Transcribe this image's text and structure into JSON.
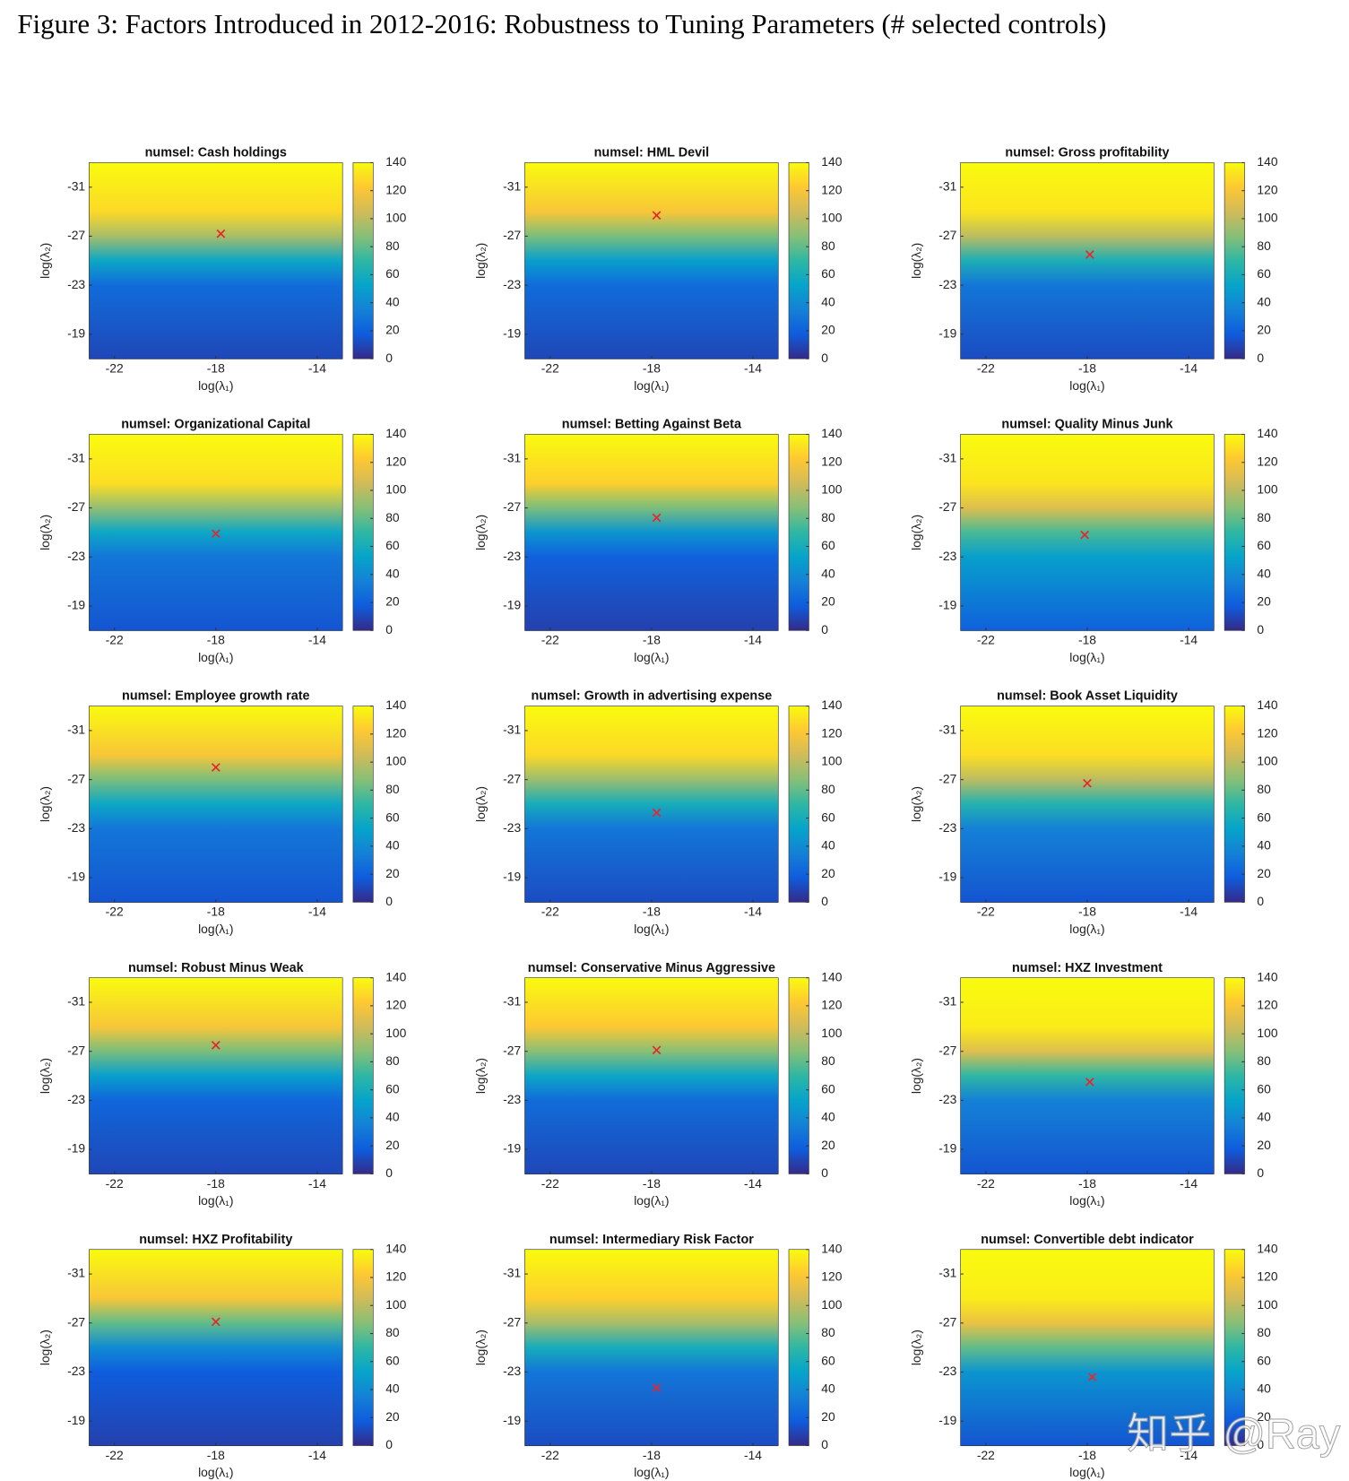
{
  "title": "Figure 3: Factors Introduced in 2012-2016: Robustness to Tuning Parameters (# selected controls)",
  "watermark": "知乎 @Ray",
  "chart_data": [
    {
      "type": "heatmap",
      "title": "numsel: Cash holdings",
      "xlabel": "log(λ₁)",
      "ylabel": "log(λ₂)",
      "xlim": [
        -23,
        -13
      ],
      "xticks": [
        -22,
        -18,
        -14
      ],
      "ylim": [
        -17,
        -33
      ],
      "yticks": [
        -31,
        -27,
        -23,
        -19
      ],
      "clim": [
        0,
        140
      ],
      "cticks": [
        0,
        20,
        40,
        60,
        80,
        100,
        120,
        140
      ],
      "profile": {
        "y": [
          -33,
          -29,
          -27,
          -25,
          -23,
          -17
        ],
        "values": [
          140,
          128,
          95,
          55,
          25,
          10
        ]
      },
      "marker": {
        "x": -17.8,
        "y": -27.2,
        "color": "#e8262a"
      }
    },
    {
      "type": "heatmap",
      "title": "numsel: HML Devil",
      "xlabel": "log(λ₁)",
      "ylabel": "log(λ₂)",
      "xlim": [
        -23,
        -13
      ],
      "xticks": [
        -22,
        -18,
        -14
      ],
      "ylim": [
        -17,
        -33
      ],
      "yticks": [
        -31,
        -27,
        -23,
        -19
      ],
      "clim": [
        0,
        140
      ],
      "cticks": [
        0,
        20,
        40,
        60,
        80,
        100,
        120,
        140
      ],
      "profile": {
        "y": [
          -33,
          -29,
          -27,
          -25,
          -23,
          -17
        ],
        "values": [
          140,
          120,
          85,
          50,
          25,
          10
        ]
      },
      "marker": {
        "x": -17.8,
        "y": -28.7,
        "color": "#e8262a"
      }
    },
    {
      "type": "heatmap",
      "title": "numsel: Gross profitability",
      "xlabel": "log(λ₁)",
      "ylabel": "log(λ₂)",
      "xlim": [
        -23,
        -13
      ],
      "xticks": [
        -22,
        -18,
        -14
      ],
      "ylim": [
        -17,
        -33
      ],
      "yticks": [
        -31,
        -27,
        -23,
        -19
      ],
      "clim": [
        0,
        140
      ],
      "cticks": [
        0,
        20,
        40,
        60,
        80,
        100,
        120,
        140
      ],
      "profile": {
        "y": [
          -33,
          -29,
          -27,
          -25,
          -23,
          -17
        ],
        "values": [
          140,
          132,
          100,
          62,
          30,
          12
        ]
      },
      "marker": {
        "x": -17.9,
        "y": -25.5,
        "color": "#e8262a"
      }
    },
    {
      "type": "heatmap",
      "title": "numsel: Organizational Capital",
      "xlabel": "log(λ₁)",
      "ylabel": "log(λ₂)",
      "xlim": [
        -23,
        -13
      ],
      "xticks": [
        -22,
        -18,
        -14
      ],
      "ylim": [
        -17,
        -33
      ],
      "yticks": [
        -31,
        -27,
        -23,
        -19
      ],
      "clim": [
        0,
        140
      ],
      "cticks": [
        0,
        20,
        40,
        60,
        80,
        100,
        120,
        140
      ],
      "profile": {
        "y": [
          -33,
          -29,
          -27,
          -25,
          -23,
          -17
        ],
        "values": [
          140,
          130,
          90,
          55,
          30,
          15
        ]
      },
      "marker": {
        "x": -18,
        "y": -24.9,
        "color": "#e8262a"
      }
    },
    {
      "type": "heatmap",
      "title": "numsel: Betting Against Beta",
      "xlabel": "log(λ₁)",
      "ylabel": "log(λ₂)",
      "xlim": [
        -23,
        -13
      ],
      "xticks": [
        -22,
        -18,
        -14
      ],
      "ylim": [
        -17,
        -33
      ],
      "yticks": [
        -31,
        -27,
        -23,
        -19
      ],
      "clim": [
        0,
        140
      ],
      "cticks": [
        0,
        20,
        40,
        60,
        80,
        100,
        120,
        140
      ],
      "profile": {
        "y": [
          -33,
          -29,
          -27,
          -25,
          -23,
          -17
        ],
        "values": [
          140,
          125,
          85,
          45,
          20,
          8
        ]
      },
      "marker": {
        "x": -17.8,
        "y": -26.2,
        "color": "#e8262a"
      }
    },
    {
      "type": "heatmap",
      "title": "numsel: Quality Minus Junk",
      "xlabel": "log(λ₁)",
      "ylabel": "log(λ₂)",
      "xlim": [
        -23,
        -13
      ],
      "xticks": [
        -22,
        -18,
        -14
      ],
      "ylim": [
        -17,
        -33
      ],
      "yticks": [
        -31,
        -27,
        -23,
        -19
      ],
      "clim": [
        0,
        140
      ],
      "cticks": [
        0,
        20,
        40,
        60,
        80,
        100,
        120,
        140
      ],
      "profile": {
        "y": [
          -33,
          -29,
          -27,
          -25,
          -23,
          -17
        ],
        "values": [
          140,
          132,
          110,
          75,
          50,
          20
        ]
      },
      "marker": {
        "x": -18.1,
        "y": -24.8,
        "color": "#e8262a"
      }
    },
    {
      "type": "heatmap",
      "title": "numsel: Employee growth rate",
      "xlabel": "log(λ₁)",
      "ylabel": "log(λ₂)",
      "xlim": [
        -23,
        -13
      ],
      "xticks": [
        -22,
        -18,
        -14
      ],
      "ylim": [
        -17,
        -33
      ],
      "yticks": [
        -31,
        -27,
        -23,
        -19
      ],
      "clim": [
        0,
        140
      ],
      "cticks": [
        0,
        20,
        40,
        60,
        80,
        100,
        120,
        140
      ],
      "profile": {
        "y": [
          -33,
          -29,
          -27,
          -25,
          -23,
          -17
        ],
        "values": [
          140,
          120,
          85,
          55,
          30,
          15
        ]
      },
      "marker": {
        "x": -18,
        "y": -28,
        "color": "#e8262a"
      }
    },
    {
      "type": "heatmap",
      "title": "numsel: Growth in advertising expense",
      "xlabel": "log(λ₁)",
      "ylabel": "log(λ₂)",
      "xlim": [
        -23,
        -13
      ],
      "xticks": [
        -22,
        -18,
        -14
      ],
      "ylim": [
        -17,
        -33
      ],
      "yticks": [
        -31,
        -27,
        -23,
        -19
      ],
      "clim": [
        0,
        140
      ],
      "cticks": [
        0,
        20,
        40,
        60,
        80,
        100,
        120,
        140
      ],
      "profile": {
        "y": [
          -33,
          -29,
          -27,
          -25,
          -23,
          -17
        ],
        "values": [
          140,
          128,
          92,
          60,
          30,
          12
        ]
      },
      "marker": {
        "x": -17.8,
        "y": -24.3,
        "color": "#e8262a"
      }
    },
    {
      "type": "heatmap",
      "title": "numsel: Book Asset Liquidity",
      "xlabel": "log(λ₁)",
      "ylabel": "log(λ₂)",
      "xlim": [
        -23,
        -13
      ],
      "xticks": [
        -22,
        -18,
        -14
      ],
      "ylim": [
        -17,
        -33
      ],
      "yticks": [
        -31,
        -27,
        -23,
        -19
      ],
      "clim": [
        0,
        140
      ],
      "cticks": [
        0,
        20,
        40,
        60,
        80,
        100,
        120,
        140
      ],
      "profile": {
        "y": [
          -33,
          -29,
          -27,
          -25,
          -23,
          -17
        ],
        "values": [
          140,
          130,
          100,
          65,
          35,
          15
        ]
      },
      "marker": {
        "x": -18,
        "y": -26.7,
        "color": "#e8262a"
      }
    },
    {
      "type": "heatmap",
      "title": "numsel: Robust Minus Weak",
      "xlabel": "log(λ₁)",
      "ylabel": "log(λ₂)",
      "xlim": [
        -23,
        -13
      ],
      "xticks": [
        -22,
        -18,
        -14
      ],
      "ylim": [
        -17,
        -33
      ],
      "yticks": [
        -31,
        -27,
        -23,
        -19
      ],
      "clim": [
        0,
        140
      ],
      "cticks": [
        0,
        20,
        40,
        60,
        80,
        100,
        120,
        140
      ],
      "profile": {
        "y": [
          -33,
          -29,
          -27,
          -25,
          -23,
          -17
        ],
        "values": [
          140,
          120,
          85,
          50,
          22,
          10
        ]
      },
      "marker": {
        "x": -18,
        "y": -27.5,
        "color": "#e8262a"
      }
    },
    {
      "type": "heatmap",
      "title": "numsel: Conservative Minus Aggressive",
      "xlabel": "log(λ₁)",
      "ylabel": "log(λ₂)",
      "xlim": [
        -23,
        -13
      ],
      "xticks": [
        -22,
        -18,
        -14
      ],
      "ylim": [
        -17,
        -33
      ],
      "yticks": [
        -31,
        -27,
        -23,
        -19
      ],
      "clim": [
        0,
        140
      ],
      "cticks": [
        0,
        20,
        40,
        60,
        80,
        100,
        120,
        140
      ],
      "profile": {
        "y": [
          -33,
          -29,
          -27,
          -25,
          -23,
          -17
        ],
        "values": [
          140,
          122,
          88,
          55,
          25,
          10
        ]
      },
      "marker": {
        "x": -17.8,
        "y": -27.1,
        "color": "#e8262a"
      }
    },
    {
      "type": "heatmap",
      "title": "numsel: HXZ Investment",
      "xlabel": "log(λ₁)",
      "ylabel": "log(λ₂)",
      "xlim": [
        -23,
        -13
      ],
      "xticks": [
        -22,
        -18,
        -14
      ],
      "ylim": [
        -17,
        -33
      ],
      "yticks": [
        -31,
        -27,
        -23,
        -19
      ],
      "clim": [
        0,
        140
      ],
      "cticks": [
        0,
        20,
        40,
        60,
        80,
        100,
        120,
        140
      ],
      "profile": {
        "y": [
          -33,
          -29,
          -27,
          -25,
          -23,
          -17
        ],
        "values": [
          140,
          135,
          110,
          70,
          35,
          15
        ]
      },
      "marker": {
        "x": -17.9,
        "y": -24.5,
        "color": "#e8262a"
      }
    },
    {
      "type": "heatmap",
      "title": "numsel: HXZ Profitability",
      "xlabel": "log(λ₁)",
      "ylabel": "log(λ₂)",
      "xlim": [
        -23,
        -13
      ],
      "xticks": [
        -22,
        -18,
        -14
      ],
      "ylim": [
        -17,
        -33
      ],
      "yticks": [
        -31,
        -27,
        -23,
        -19
      ],
      "clim": [
        0,
        140
      ],
      "cticks": [
        0,
        20,
        40,
        60,
        80,
        100,
        120,
        140
      ],
      "profile": {
        "y": [
          -33,
          -29,
          -27,
          -25,
          -23,
          -17
        ],
        "values": [
          140,
          120,
          80,
          40,
          18,
          8
        ]
      },
      "marker": {
        "x": -18,
        "y": -27.1,
        "color": "#e8262a"
      }
    },
    {
      "type": "heatmap",
      "title": "numsel: Intermediary Risk Factor",
      "xlabel": "log(λ₁)",
      "ylabel": "log(λ₂)",
      "xlim": [
        -23,
        -13
      ],
      "xticks": [
        -22,
        -18,
        -14
      ],
      "ylim": [
        -17,
        -33
      ],
      "yticks": [
        -31,
        -27,
        -23,
        -19
      ],
      "clim": [
        0,
        140
      ],
      "cticks": [
        0,
        20,
        40,
        60,
        80,
        100,
        120,
        140
      ],
      "profile": {
        "y": [
          -33,
          -29,
          -27,
          -25,
          -23,
          -17
        ],
        "values": [
          140,
          125,
          95,
          60,
          30,
          12
        ]
      },
      "marker": {
        "x": -17.8,
        "y": -21.7,
        "color": "#e8262a"
      }
    },
    {
      "type": "heatmap",
      "title": "numsel: Convertible debt indicator",
      "xlabel": "log(λ₁)",
      "ylabel": "log(λ₂)",
      "xlim": [
        -23,
        -13
      ],
      "xticks": [
        -22,
        -18,
        -14
      ],
      "ylim": [
        -17,
        -33
      ],
      "yticks": [
        -31,
        -27,
        -23,
        -19
      ],
      "clim": [
        0,
        140
      ],
      "cticks": [
        0,
        20,
        40,
        60,
        80,
        100,
        120,
        140
      ],
      "profile": {
        "y": [
          -33,
          -29,
          -27,
          -25,
          -23,
          -17
        ],
        "values": [
          140,
          135,
          115,
          80,
          45,
          15
        ]
      },
      "marker": {
        "x": -17.8,
        "y": -22.6,
        "color": "#e8262a"
      }
    }
  ]
}
